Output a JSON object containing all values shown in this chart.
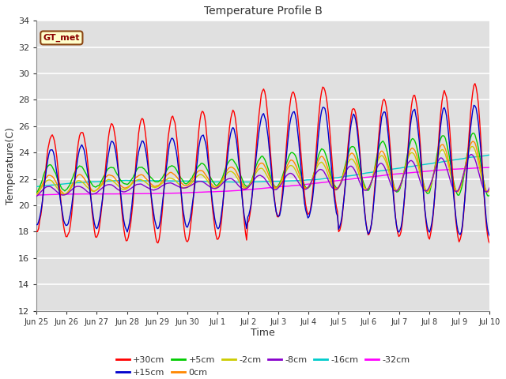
{
  "title": "Temperature Profile B",
  "xlabel": "Time",
  "ylabel": "Temperature(C)",
  "ylim": [
    12,
    34
  ],
  "yticks": [
    12,
    14,
    16,
    18,
    20,
    22,
    24,
    26,
    28,
    30,
    32,
    34
  ],
  "xtick_labels": [
    "Jun 25",
    "Jun 26",
    "Jun 27",
    "Jun 28",
    "Jun 29",
    "Jun 30",
    "Jul 1",
    "Jul 2",
    "Jul 3",
    "Jul 4",
    "Jul 5",
    "Jul 6",
    "Jul 7",
    "Jul 8",
    "Jul 9",
    "Jul 10"
  ],
  "legend_entries": [
    "+30cm",
    "+15cm",
    "+5cm",
    "0cm",
    "-2cm",
    "-8cm",
    "-16cm",
    "-32cm"
  ],
  "legend_colors": [
    "#ff0000",
    "#0000cc",
    "#00cc00",
    "#ff8800",
    "#cccc00",
    "#8800cc",
    "#00cccc",
    "#ff00ff"
  ],
  "gt_met_label": "GT_met",
  "fig_background": "#ffffff",
  "plot_background": "#e0e0e0",
  "grid_color": "#ffffff",
  "n_points": 400
}
